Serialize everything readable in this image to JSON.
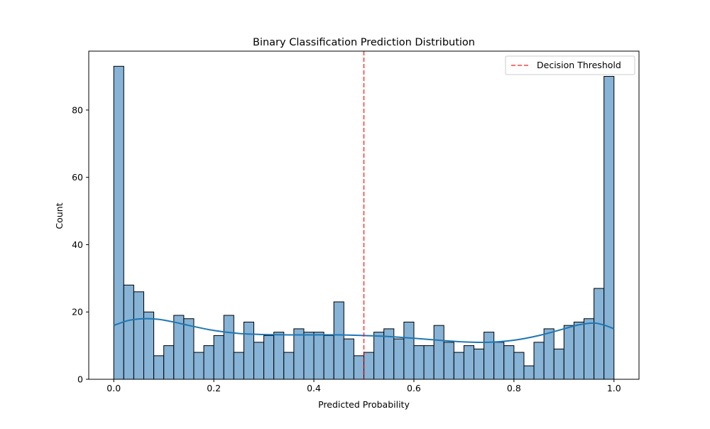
{
  "chart_data": {
    "type": "bar",
    "title": "Binary Classification Prediction Distribution",
    "xlabel": "Predicted Probability",
    "ylabel": "Count",
    "xlim": [
      -0.05,
      1.05
    ],
    "ylim": [
      0,
      97.5
    ],
    "xticks": [
      0.0,
      0.2,
      0.4,
      0.6,
      0.8,
      1.0
    ],
    "xtick_labels": [
      "0.0",
      "0.2",
      "0.4",
      "0.6",
      "0.8",
      "1.0"
    ],
    "yticks": [
      0,
      20,
      40,
      60,
      80
    ],
    "ytick_labels": [
      "0",
      "20",
      "40",
      "60",
      "80"
    ],
    "grid": false,
    "legend_position": "top-right",
    "bin_width": 0.02,
    "bin_start": 0.0,
    "counts": [
      93,
      28,
      26,
      20,
      7,
      10,
      19,
      18,
      8,
      10,
      13,
      19,
      8,
      17,
      11,
      13,
      14,
      8,
      15,
      14,
      14,
      13,
      23,
      12,
      7,
      8,
      14,
      15,
      12,
      17,
      10,
      10,
      16,
      11,
      8,
      10,
      9,
      14,
      11,
      10,
      8,
      4,
      11,
      15,
      9,
      16,
      17,
      18,
      27,
      90
    ],
    "bar_color": "#86b3d6",
    "kde": {
      "color": "#1f77b4",
      "x": [
        0.0,
        0.03,
        0.06,
        0.09,
        0.12,
        0.15,
        0.2,
        0.25,
        0.3,
        0.35,
        0.4,
        0.45,
        0.5,
        0.55,
        0.6,
        0.65,
        0.7,
        0.75,
        0.8,
        0.85,
        0.9,
        0.93,
        0.96,
        0.98,
        1.0
      ],
      "y": [
        16,
        17.5,
        18,
        17.8,
        17,
        16,
        14.5,
        13.6,
        13.3,
        13.2,
        13.2,
        13.2,
        13,
        12.7,
        12.2,
        11.6,
        11.1,
        11,
        11.6,
        13,
        15,
        16.2,
        16.7,
        16.1,
        15
      ]
    },
    "threshold": {
      "x": 0.5,
      "label": "Decision Threshold",
      "color": "#ff0000"
    }
  }
}
